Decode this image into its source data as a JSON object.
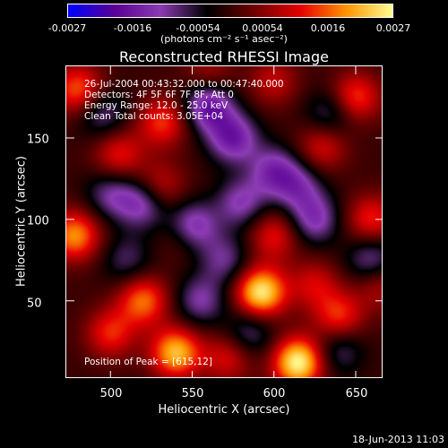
{
  "colorbar": {
    "ticks": [
      "-0.0027",
      "-0.0016",
      "-0.00054",
      "0.00054",
      "0.0016",
      "0.0027"
    ],
    "units": "(photons cm⁻² s⁻¹ asec⁻²)",
    "colors": [
      "#0000ff",
      "#5a0096",
      "#8c3cb4",
      "#000000",
      "#6e0000",
      "#e60000",
      "#ff9600",
      "#ffff96"
    ]
  },
  "chart_data": {
    "type": "heatmap",
    "title": "Reconstructed RHESSI Image",
    "xlabel": "Heliocentric X (arcsec)",
    "ylabel": "Heliocentric Y (arcsec)",
    "xlim": [
      473,
      667
    ],
    "ylim": [
      2,
      194
    ],
    "zlim": [
      -0.0027,
      0.0027
    ],
    "x_ticks": [
      "500",
      "550",
      "600",
      "650"
    ],
    "y_ticks": [
      "50",
      "100",
      "150"
    ],
    "annotations": [
      "26-Jul-2004 00:43:32.000 to 00:47:40.000",
      "Detectors: 4F 5F 6F 7F 8F, Att 0",
      "Energy Range: 12.0 - 25.0 keV",
      "Clean     Total counts: 3.05E+04"
    ],
    "peak_label": "Position of Peak = [615,12]",
    "peak": [
      615,
      12
    ],
    "sources": [
      {
        "x": 615,
        "y": 12,
        "v": 0.0027
      },
      {
        "x": 592,
        "y": 55,
        "v": 0.0026
      },
      {
        "x": 540,
        "y": 18,
        "v": 0.0022
      },
      {
        "x": 478,
        "y": 90,
        "v": 0.0019
      },
      {
        "x": 520,
        "y": 50,
        "v": 0.0017
      },
      {
        "x": 480,
        "y": 180,
        "v": 0.0016
      },
      {
        "x": 500,
        "y": 30,
        "v": 0.0013
      },
      {
        "x": 505,
        "y": 140,
        "v": 0.0012
      },
      {
        "x": 530,
        "y": 120,
        "v": 0.0011
      },
      {
        "x": 532,
        "y": 160,
        "v": 0.0014
      },
      {
        "x": 572,
        "y": 15,
        "v": 0.0011
      },
      {
        "x": 640,
        "y": 40,
        "v": 0.0014
      },
      {
        "x": 650,
        "y": 175,
        "v": 0.0015
      },
      {
        "x": 660,
        "y": 100,
        "v": 0.0013
      },
      {
        "x": 600,
        "y": 90,
        "v": 0.0012
      },
      {
        "x": 625,
        "y": 60,
        "v": 0.001
      },
      {
        "x": 630,
        "y": 145,
        "v": 0.0011
      },
      {
        "x": 600,
        "y": 185,
        "v": 0.0009
      },
      {
        "x": 545,
        "y": 90,
        "v": 0.0008
      },
      {
        "x": 665,
        "y": 60,
        "v": 0.0009
      },
      {
        "x": 560,
        "y": 190,
        "v": 0.0008
      },
      {
        "x": 575,
        "y": 150,
        "v": -0.0016
      },
      {
        "x": 560,
        "y": 170,
        "v": -0.0018
      },
      {
        "x": 550,
        "y": 95,
        "v": -0.0018
      },
      {
        "x": 520,
        "y": 110,
        "v": -0.0014
      },
      {
        "x": 580,
        "y": 110,
        "v": -0.0012
      },
      {
        "x": 600,
        "y": 130,
        "v": -0.0013
      },
      {
        "x": 625,
        "y": 100,
        "v": -0.0013
      },
      {
        "x": 615,
        "y": 120,
        "v": -0.0011
      },
      {
        "x": 495,
        "y": 165,
        "v": -0.001
      },
      {
        "x": 500,
        "y": 115,
        "v": -0.001
      },
      {
        "x": 555,
        "y": 50,
        "v": -0.0011
      },
      {
        "x": 570,
        "y": 75,
        "v": -0.001
      },
      {
        "x": 660,
        "y": 75,
        "v": -0.0012
      },
      {
        "x": 585,
        "y": 30,
        "v": -0.001
      },
      {
        "x": 640,
        "y": 20,
        "v": -0.0009
      },
      {
        "x": 635,
        "y": 165,
        "v": -0.001
      },
      {
        "x": 510,
        "y": 75,
        "v": -0.0008
      }
    ]
  },
  "footer": {
    "timestamp": "18-Jun-2013 11:03"
  }
}
